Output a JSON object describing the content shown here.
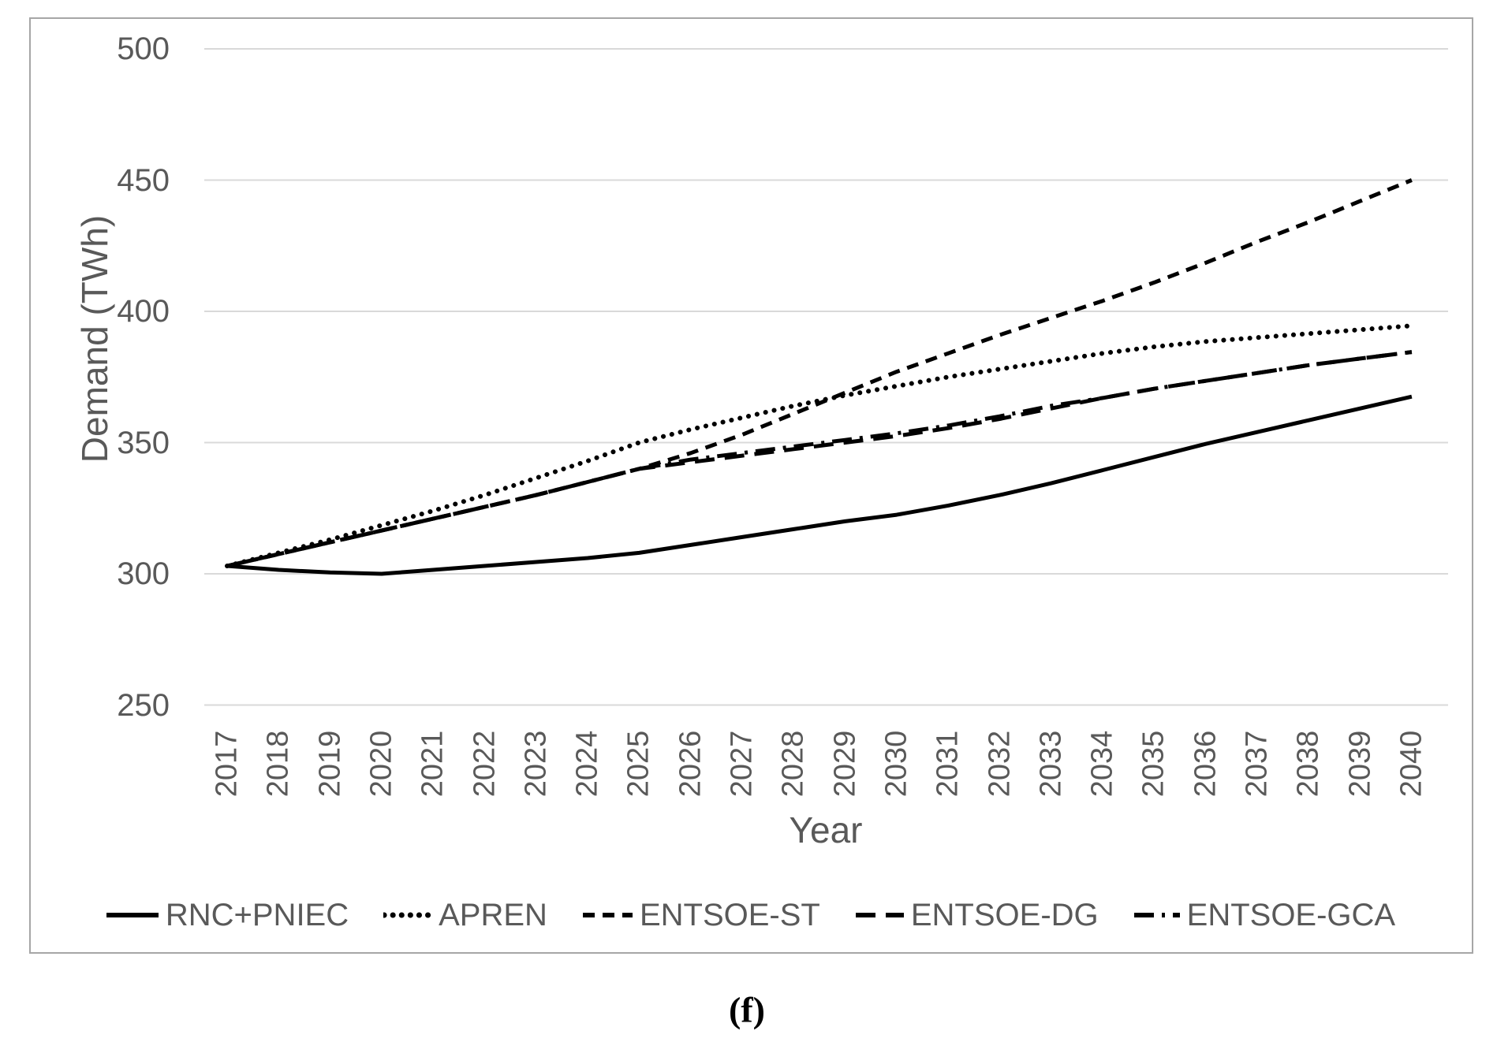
{
  "figure": {
    "caption": "(f)"
  },
  "colors": {
    "series_line": "#000000",
    "gridline": "#d9d9d9",
    "frame_border": "#a6a6a6",
    "axis_text": "#595959",
    "background": "#ffffff"
  },
  "chart_data": {
    "type": "line",
    "title": "",
    "xlabel": "Year",
    "ylabel": "Demand (TWh)",
    "ylim": [
      250,
      500
    ],
    "yticks": [
      500,
      450,
      400,
      350,
      300,
      250
    ],
    "grid": true,
    "legend_position": "bottom",
    "categories": [
      "2017",
      "2018",
      "2019",
      "2020",
      "2021",
      "2022",
      "2023",
      "2024",
      "2025",
      "2026",
      "2027",
      "2028",
      "2029",
      "2030",
      "2031",
      "2032",
      "2033",
      "2034",
      "2035",
      "2036",
      "2037",
      "2038",
      "2039",
      "2040"
    ],
    "series": [
      {
        "name": "RNC+PNIEC",
        "dash": "solid",
        "values": [
          303,
          301.5,
          300.5,
          300,
          301.5,
          303,
          304.5,
          306,
          308,
          311,
          314,
          317,
          320,
          322.5,
          326,
          330,
          334.5,
          339.5,
          344.5,
          349.5,
          354,
          358.5,
          363,
          367.5
        ]
      },
      {
        "name": "APREN",
        "dash": "dotted",
        "values": [
          303,
          308,
          313,
          318.5,
          324,
          330,
          336.5,
          343,
          350,
          355,
          359.5,
          364,
          368,
          371.5,
          375,
          378,
          381,
          384,
          386.5,
          388.5,
          390,
          391.5,
          393,
          394.5
        ]
      },
      {
        "name": "ENTSOE-ST",
        "dash": "dashed",
        "values": [
          303,
          307.5,
          312,
          316.5,
          321,
          325.5,
          330,
          335,
          340,
          346,
          353,
          361,
          369,
          377,
          384,
          391,
          397.5,
          404,
          411,
          418.5,
          426.5,
          434,
          442,
          450
        ]
      },
      {
        "name": "ENTSOE-DG",
        "dash": "long-dash",
        "values": [
          303,
          307.5,
          312,
          316.5,
          321,
          325.5,
          330,
          335,
          340,
          342.5,
          345,
          347.5,
          350,
          352.5,
          355.5,
          359,
          363,
          367,
          370.5,
          373.5,
          376.5,
          379.5,
          382,
          384.5
        ]
      },
      {
        "name": "ENTSOE-GCA",
        "dash": "dash-dot",
        "values": [
          303,
          307.5,
          312,
          316.5,
          321,
          325.5,
          330,
          335,
          340,
          343.5,
          346,
          348.5,
          351,
          353.5,
          356.5,
          360,
          364,
          367,
          370.5,
          373.5,
          376.5,
          379.5,
          382,
          384.5
        ]
      }
    ]
  }
}
